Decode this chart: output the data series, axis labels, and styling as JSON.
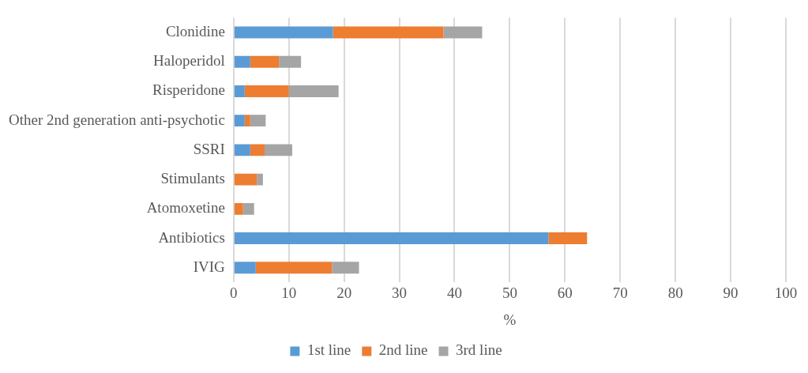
{
  "chart_data": {
    "type": "bar",
    "orientation": "horizontal",
    "stacked": true,
    "categories": [
      "Clonidine",
      "Haloperidol",
      "Risperidone",
      "Other 2nd generation anti-psychotic",
      "SSRI",
      "Stimulants",
      "Atomoxetine",
      "Antibiotics",
      "IVIG"
    ],
    "series": [
      {
        "name": "1st line",
        "color": "#5b9bd5",
        "values": [
          18,
          3,
          2,
          2,
          3,
          0,
          0,
          57,
          4
        ]
      },
      {
        "name": "2nd line",
        "color": "#ed7d31",
        "values": [
          20,
          5.2,
          8,
          1,
          2.6,
          4.2,
          1.7,
          7,
          13.8
        ]
      },
      {
        "name": "3rd line",
        "color": "#a5a5a5",
        "values": [
          7,
          4,
          9,
          2.8,
          5,
          1.1,
          2,
          0,
          4.9
        ]
      }
    ],
    "xlabel": "%",
    "xlim": [
      0,
      100
    ],
    "xticks": [
      0,
      10,
      20,
      30,
      40,
      50,
      60,
      70,
      80,
      90,
      100
    ],
    "grid": "x",
    "legend": "bottom"
  }
}
